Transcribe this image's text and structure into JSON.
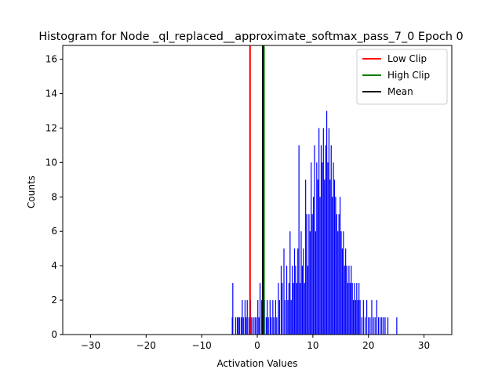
{
  "chart_data": {
    "type": "bar",
    "title": "Histogram for Node _ql_replaced__approximate_softmax_pass_7_0 Epoch 0",
    "xlabel": "Activation Values",
    "ylabel": "Counts",
    "xlim": [
      -35,
      35
    ],
    "ylim": [
      0,
      16.8
    ],
    "x_ticks": [
      -30,
      -20,
      -10,
      0,
      10,
      20,
      30
    ],
    "x_tick_labels": [
      "−30",
      "−20",
      "−10",
      "0",
      "10",
      "20",
      "30"
    ],
    "y_ticks": [
      0,
      2,
      4,
      6,
      8,
      10,
      12,
      14,
      16
    ],
    "y_tick_labels": [
      "0",
      "2",
      "4",
      "6",
      "8",
      "10",
      "12",
      "14",
      "16"
    ],
    "grid": false,
    "legend_position": "top-right",
    "bar_color": "#0000ff",
    "bin_width": 0.14,
    "series": [
      {
        "name": "",
        "x": [
          -4.5,
          -4.4,
          -3.9,
          -3.6,
          -3.4,
          -3.2,
          -2.9,
          -2.7,
          -2.5,
          -2.2,
          -2.0,
          -1.8,
          -1.5,
          -1.2,
          -1.0,
          -0.7,
          -0.4,
          -0.2,
          0.1,
          0.3,
          0.5,
          0.8,
          1.0,
          1.3,
          1.6,
          1.8,
          2.0,
          2.3,
          2.5,
          2.8,
          3.0,
          3.3,
          3.5,
          3.8,
          4.0,
          4.3,
          4.5,
          4.8,
          5.0,
          5.3,
          5.5,
          5.7,
          5.9,
          6.1,
          6.3,
          6.5,
          6.7,
          6.9,
          7.1,
          7.3,
          7.5,
          7.7,
          7.9,
          8.1,
          8.3,
          8.5,
          8.7,
          8.9,
          9.1,
          9.3,
          9.5,
          9.7,
          9.9,
          10.1,
          10.3,
          10.5,
          10.7,
          10.9,
          11.1,
          11.3,
          11.5,
          11.7,
          11.9,
          12.1,
          12.3,
          12.5,
          12.7,
          12.9,
          13.1,
          13.3,
          13.5,
          13.7,
          13.9,
          14.1,
          14.3,
          14.5,
          14.7,
          14.9,
          15.1,
          15.3,
          15.5,
          15.7,
          15.9,
          16.1,
          16.3,
          16.5,
          16.7,
          16.9,
          17.1,
          17.3,
          17.5,
          17.7,
          17.9,
          18.1,
          18.3,
          18.5,
          18.8,
          19.1,
          19.4,
          19.7,
          20.0,
          20.3,
          20.6,
          20.9,
          21.2,
          21.5,
          21.8,
          22.1,
          22.4,
          22.7,
          23.0,
          23.5,
          25.1
        ],
        "counts": [
          1,
          3,
          1,
          1,
          1,
          1,
          1,
          2,
          1,
          2,
          1,
          2,
          1,
          2,
          1,
          1,
          1,
          1,
          2,
          1,
          3,
          2,
          3,
          2,
          1,
          2,
          1,
          2,
          1,
          2,
          1,
          2,
          1,
          3,
          2,
          4,
          3,
          5,
          2,
          4,
          2,
          3,
          6,
          2,
          4,
          3,
          5,
          4,
          3,
          5,
          11,
          3,
          6,
          4,
          5,
          3,
          9,
          7,
          4,
          7,
          6,
          10,
          7,
          8,
          11,
          6,
          10,
          9,
          12,
          8,
          11,
          10,
          12,
          9,
          11,
          13,
          10,
          12,
          9,
          11,
          8,
          10,
          9,
          8,
          7,
          6,
          7,
          8,
          6,
          5,
          6,
          4,
          5,
          4,
          3,
          4,
          3,
          4,
          3,
          2,
          3,
          2,
          3,
          2,
          3,
          2,
          1,
          2,
          1,
          2,
          1,
          1,
          2,
          1,
          1,
          2,
          1,
          1,
          1,
          1,
          1,
          1,
          1
        ]
      }
    ],
    "reference_lines": [
      {
        "label": "Low Clip",
        "x": -1.3,
        "color": "#ff0000"
      },
      {
        "label": "High Clip",
        "x": 1.2,
        "color": "#008000"
      },
      {
        "label": "Mean",
        "x": 1.0,
        "color": "#000000"
      }
    ]
  }
}
